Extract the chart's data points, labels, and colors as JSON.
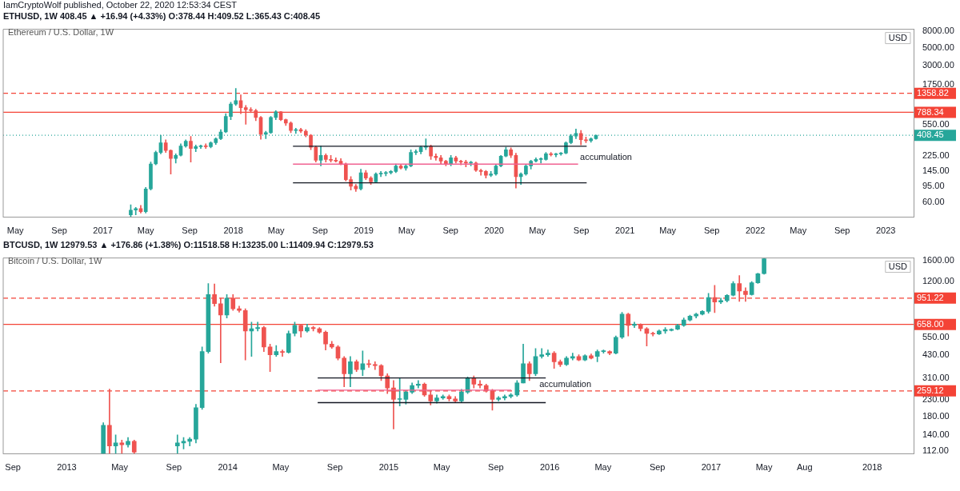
{
  "chart_data": [
    {
      "type": "candlestick",
      "title": "Ethereum / U.S. Dollar, 1W",
      "subtitle": "ETHUSD, 1W  408.45 ▲ +16.94 (+4.33%) O:378.44 H:409.52 L:365.43 C:408.45",
      "ylabel": "USD",
      "log": true,
      "annotations": [
        "IamCryptoWolf published, October 22, 2020 12:53:34 CEST",
        {
          "text": "accumulation",
          "x": "2020-08-24",
          "y": 188
        }
      ],
      "xlim": [
        "2016-03-28",
        "2023-03-20"
      ],
      "xticks": [
        {
          "value": "2016-05-01",
          "label": "May"
        },
        {
          "value": "2016-09-01",
          "label": "Sep"
        },
        {
          "value": "2017-01-01",
          "label": "2017"
        },
        {
          "value": "2017-05-01",
          "label": "May"
        },
        {
          "value": "2017-09-01",
          "label": "Sep"
        },
        {
          "value": "2018-01-01",
          "label": "2018"
        },
        {
          "value": "2018-05-01",
          "label": "May"
        },
        {
          "value": "2018-09-01",
          "label": "Sep"
        },
        {
          "value": "2019-01-01",
          "label": "2019"
        },
        {
          "value": "2019-05-01",
          "label": "May"
        },
        {
          "value": "2019-09-01",
          "label": "Sep"
        },
        {
          "value": "2020-01-01",
          "label": "2020"
        },
        {
          "value": "2020-05-01",
          "label": "May"
        },
        {
          "value": "2020-09-01",
          "label": "Sep"
        },
        {
          "value": "2021-01-01",
          "label": "2021"
        },
        {
          "value": "2021-05-01",
          "label": "May"
        },
        {
          "value": "2021-09-01",
          "label": "Sep"
        },
        {
          "value": "2022-01-01",
          "label": "2022"
        },
        {
          "value": "2022-05-01",
          "label": "May"
        },
        {
          "value": "2022-09-01",
          "label": "Sep"
        },
        {
          "value": "2023-01-01",
          "label": "2023"
        }
      ],
      "ylim": [
        39,
        8500
      ],
      "yticks": [
        {
          "value": 60,
          "label": "60.00"
        },
        {
          "value": 95,
          "label": "95.00"
        },
        {
          "value": 145,
          "label": "145.00"
        },
        {
          "value": 225,
          "label": "225.00"
        },
        {
          "value": 550,
          "label": "550.00"
        },
        {
          "value": 1750,
          "label": "1750.00"
        },
        {
          "value": 3000,
          "label": "3000.00"
        },
        {
          "value": 5000,
          "label": "5000.00"
        },
        {
          "value": 8000,
          "label": "8000.00"
        }
      ],
      "ref_lines": [
        {
          "axis": "y",
          "value": 1358.82,
          "label": "1358.82",
          "color": "#f44336",
          "line_style": "dashed"
        },
        {
          "axis": "y",
          "value": 788.34,
          "label": "788.34",
          "color": "#f44336",
          "line_style": "solid"
        },
        {
          "axis": "y",
          "value": 408.45,
          "label": "408.45",
          "color": "#26a69a",
          "line_style": "dotted"
        }
      ],
      "series": [
        {
          "type": "line",
          "color": "#131722",
          "line_style": "solid",
          "x": [
            "2018-06-17",
            "2020-09-16"
          ],
          "values": [
            298,
            298
          ]
        },
        {
          "type": "line",
          "color": "#f06292",
          "line_style": "solid",
          "x": [
            "2018-06-17",
            "2020-08-23"
          ],
          "values": [
            179,
            179
          ]
        },
        {
          "type": "line",
          "color": "#131722",
          "line_style": "solid",
          "x": [
            "2018-06-17",
            "2020-09-16"
          ],
          "values": [
            105,
            105
          ]
        }
      ],
      "x": [
        "2017-03-20",
        "2017-04-03",
        "2017-04-17",
        "2017-05-01",
        "2017-05-15",
        "2017-05-29",
        "2017-06-12",
        "2017-06-26",
        "2017-07-10",
        "2017-07-24",
        "2017-08-07",
        "2017-08-21",
        "2017-09-04",
        "2017-09-18",
        "2017-10-02",
        "2017-10-16",
        "2017-10-30",
        "2017-11-13",
        "2017-11-27",
        "2017-12-11",
        "2017-12-25",
        "2018-01-08",
        "2018-01-22",
        "2018-02-05",
        "2018-02-19",
        "2018-03-05",
        "2018-03-19",
        "2018-04-02",
        "2018-04-16",
        "2018-04-30",
        "2018-05-14",
        "2018-05-28",
        "2018-06-11",
        "2018-06-25",
        "2018-07-09",
        "2018-07-23",
        "2018-08-06",
        "2018-08-20",
        "2018-09-03",
        "2018-09-17",
        "2018-10-01",
        "2018-10-15",
        "2018-10-29",
        "2018-11-12",
        "2018-11-26",
        "2018-12-10",
        "2018-12-24",
        "2019-01-07",
        "2019-01-21",
        "2019-02-04",
        "2019-02-18",
        "2019-03-04",
        "2019-03-18",
        "2019-04-01",
        "2019-04-15",
        "2019-04-29",
        "2019-05-13",
        "2019-05-27",
        "2019-06-10",
        "2019-06-24",
        "2019-07-08",
        "2019-07-22",
        "2019-08-05",
        "2019-08-19",
        "2019-09-02",
        "2019-09-16",
        "2019-09-30",
        "2019-10-14",
        "2019-10-28",
        "2019-11-11",
        "2019-11-25",
        "2019-12-09",
        "2019-12-23",
        "2020-01-06",
        "2020-01-20",
        "2020-02-03",
        "2020-02-17",
        "2020-03-02",
        "2020-03-16",
        "2020-03-30",
        "2020-04-13",
        "2020-04-27",
        "2020-05-11",
        "2020-05-25",
        "2020-06-08",
        "2020-06-22",
        "2020-07-06",
        "2020-07-20",
        "2020-08-03",
        "2020-08-17",
        "2020-08-31",
        "2020-09-14",
        "2020-09-28",
        "2020-10-12"
      ],
      "ohlc": [
        [
          42,
          56,
          40,
          48
        ],
        [
          48,
          52,
          42,
          50
        ],
        [
          50,
          55,
          44,
          46
        ],
        [
          46,
          92,
          44,
          88
        ],
        [
          88,
          190,
          85,
          180
        ],
        [
          180,
          260,
          175,
          250
        ],
        [
          250,
          410,
          240,
          330
        ],
        [
          330,
          360,
          250,
          265
        ],
        [
          265,
          270,
          135,
          210
        ],
        [
          210,
          240,
          185,
          230
        ],
        [
          230,
          320,
          225,
          300
        ],
        [
          300,
          360,
          290,
          345
        ],
        [
          345,
          395,
          190,
          280
        ],
        [
          280,
          310,
          255,
          295
        ],
        [
          295,
          310,
          280,
          300
        ],
        [
          300,
          320,
          280,
          295
        ],
        [
          295,
          340,
          285,
          330
        ],
        [
          330,
          380,
          315,
          370
        ],
        [
          370,
          480,
          360,
          450
        ],
        [
          450,
          760,
          440,
          700
        ],
        [
          700,
          1050,
          640,
          1000
        ],
        [
          1000,
          1563,
          960,
          1100
        ],
        [
          1100,
          1300,
          760,
          900
        ],
        [
          900,
          960,
          560,
          850
        ],
        [
          850,
          900,
          780,
          830
        ],
        [
          830,
          860,
          620,
          680
        ],
        [
          680,
          700,
          365,
          420
        ],
        [
          420,
          460,
          370,
          440
        ],
        [
          440,
          700,
          430,
          680
        ],
        [
          680,
          830,
          640,
          800
        ],
        [
          800,
          810,
          620,
          640
        ],
        [
          640,
          650,
          540,
          580
        ],
        [
          580,
          600,
          440,
          470
        ],
        [
          470,
          500,
          430,
          480
        ],
        [
          480,
          500,
          440,
          460
        ],
        [
          460,
          480,
          390,
          410
        ],
        [
          410,
          420,
          270,
          290
        ],
        [
          290,
          300,
          190,
          200
        ],
        [
          200,
          300,
          170,
          230
        ],
        [
          230,
          240,
          190,
          205
        ],
        [
          205,
          230,
          190,
          200
        ],
        [
          200,
          215,
          190,
          195
        ],
        [
          195,
          210,
          175,
          180
        ],
        [
          180,
          185,
          110,
          115
        ],
        [
          115,
          125,
          85,
          95
        ],
        [
          95,
          100,
          82,
          88
        ],
        [
          88,
          155,
          85,
          140
        ],
        [
          140,
          150,
          115,
          120
        ],
        [
          120,
          125,
          100,
          108
        ],
        [
          108,
          140,
          105,
          135
        ],
        [
          135,
          145,
          125,
          137
        ],
        [
          137,
          145,
          128,
          140
        ],
        [
          140,
          150,
          135,
          145
        ],
        [
          145,
          180,
          140,
          170
        ],
        [
          170,
          175,
          155,
          160
        ],
        [
          160,
          175,
          150,
          170
        ],
        [
          170,
          270,
          165,
          250
        ],
        [
          250,
          270,
          235,
          255
        ],
        [
          255,
          300,
          240,
          290
        ],
        [
          290,
          370,
          270,
          295
        ],
        [
          295,
          310,
          205,
          225
        ],
        [
          225,
          240,
          200,
          215
        ],
        [
          215,
          230,
          180,
          195
        ],
        [
          195,
          200,
          170,
          180
        ],
        [
          180,
          230,
          170,
          215
        ],
        [
          215,
          225,
          185,
          195
        ],
        [
          195,
          200,
          175,
          190
        ],
        [
          190,
          200,
          165,
          185
        ],
        [
          185,
          195,
          170,
          185
        ],
        [
          185,
          190,
          145,
          150
        ],
        [
          150,
          155,
          130,
          145
        ],
        [
          145,
          150,
          120,
          130
        ],
        [
          130,
          145,
          125,
          135
        ],
        [
          135,
          175,
          130,
          170
        ],
        [
          170,
          230,
          165,
          225
        ],
        [
          225,
          290,
          220,
          270
        ],
        [
          270,
          285,
          215,
          230
        ],
        [
          230,
          245,
          90,
          125
        ],
        [
          125,
          140,
          100,
          135
        ],
        [
          135,
          175,
          130,
          170
        ],
        [
          170,
          200,
          155,
          195
        ],
        [
          195,
          215,
          190,
          205
        ],
        [
          205,
          215,
          185,
          205
        ],
        [
          205,
          250,
          200,
          240
        ],
        [
          240,
          250,
          225,
          235
        ],
        [
          235,
          245,
          220,
          240
        ],
        [
          240,
          250,
          230,
          245
        ],
        [
          245,
          340,
          240,
          330
        ],
        [
          330,
          420,
          320,
          400
        ],
        [
          400,
          490,
          370,
          430
        ],
        [
          430,
          470,
          310,
          360
        ],
        [
          360,
          390,
          330,
          350
        ],
        [
          350,
          380,
          335,
          370
        ],
        [
          370,
          409.52,
          365.43,
          408.45
        ]
      ]
    },
    {
      "type": "candlestick",
      "title": "Bitcoin / U.S. Dollar, 1W",
      "subtitle": "BTCUSD, 1W  12979.53 ▲ +176.86 (+1.38%) O:11518.58 H:13235.00 L:11409.94 C:12979.53",
      "ylabel": "USD",
      "log": true,
      "annotations": [
        {
          "text": "accumulation",
          "x": "2015-12-05",
          "y": 262
        }
      ],
      "xlim": [
        "2012-08-10",
        "2018-04-05"
      ],
      "xticks": [
        {
          "value": "2012-09-01",
          "label": "Sep"
        },
        {
          "value": "2013-01-01",
          "label": "2013"
        },
        {
          "value": "2013-05-01",
          "label": "May"
        },
        {
          "value": "2013-09-01",
          "label": "Sep"
        },
        {
          "value": "2014-01-01",
          "label": "2014"
        },
        {
          "value": "2014-05-01",
          "label": "May"
        },
        {
          "value": "2014-09-01",
          "label": "Sep"
        },
        {
          "value": "2015-01-01",
          "label": "2015"
        },
        {
          "value": "2015-05-01",
          "label": "May"
        },
        {
          "value": "2015-09-01",
          "label": "Sep"
        },
        {
          "value": "2016-01-01",
          "label": "2016"
        },
        {
          "value": "2016-05-01",
          "label": "May"
        },
        {
          "value": "2016-09-01",
          "label": "Sep"
        },
        {
          "value": "2017-01-01",
          "label": "2017"
        },
        {
          "value": "2017-05-01",
          "label": "May"
        },
        {
          "value": "2017-08-01",
          "label": "Aug"
        },
        {
          "value": "2018-01-01",
          "label": "2018"
        }
      ],
      "ylim": [
        107,
        1670
      ],
      "yticks": [
        {
          "value": 112,
          "label": "112.00"
        },
        {
          "value": 140,
          "label": "140.00"
        },
        {
          "value": 180,
          "label": "180.00"
        },
        {
          "value": 230,
          "label": "230.00"
        },
        {
          "value": 310,
          "label": "310.00"
        },
        {
          "value": 430,
          "label": "430.00"
        },
        {
          "value": 550,
          "label": "550.00"
        },
        {
          "value": 1200,
          "label": "1200.00"
        },
        {
          "value": 1600,
          "label": "1600.00"
        }
      ],
      "ref_lines": [
        {
          "axis": "y",
          "value": 951.22,
          "label": "951.22",
          "color": "#f44336",
          "line_style": "dashed"
        },
        {
          "axis": "y",
          "value": 658.0,
          "label": "658.00",
          "color": "#f44336",
          "line_style": "solid"
        },
        {
          "axis": "y",
          "value": 259.12,
          "label": "259.12",
          "color": "#f44336",
          "line_style": "dashed"
        }
      ],
      "series": [
        {
          "type": "line",
          "color": "#131722",
          "line_style": "solid",
          "x": [
            "2014-07-24",
            "2015-12-23"
          ],
          "values": [
            311,
            311
          ]
        },
        {
          "type": "line",
          "color": "#f06292",
          "line_style": "solid",
          "x": [
            "2014-07-24",
            "2015-10-06"
          ],
          "values": [
            262,
            262
          ]
        },
        {
          "type": "line",
          "color": "#131722",
          "line_style": "solid",
          "x": [
            "2014-07-24",
            "2015-12-23"
          ],
          "values": [
            220,
            220
          ]
        }
      ],
      "x": [
        "2013-03-25",
        "2013-04-08",
        "2013-04-22",
        "2013-05-06",
        "2013-05-20",
        "2013-06-03",
        "2013-09-09",
        "2013-09-23",
        "2013-10-07",
        "2013-10-21",
        "2013-11-04",
        "2013-11-18",
        "2013-12-02",
        "2013-12-16",
        "2013-12-30",
        "2014-01-13",
        "2014-01-27",
        "2014-02-10",
        "2014-02-24",
        "2014-03-10",
        "2014-03-24",
        "2014-04-07",
        "2014-04-21",
        "2014-05-05",
        "2014-05-19",
        "2014-06-02",
        "2014-06-16",
        "2014-06-30",
        "2014-07-14",
        "2014-07-28",
        "2014-08-11",
        "2014-08-25",
        "2014-09-08",
        "2014-09-22",
        "2014-10-06",
        "2014-10-20",
        "2014-11-03",
        "2014-11-17",
        "2014-12-01",
        "2014-12-15",
        "2014-12-29",
        "2015-01-12",
        "2015-01-26",
        "2015-02-09",
        "2015-02-23",
        "2015-03-09",
        "2015-03-23",
        "2015-04-06",
        "2015-04-20",
        "2015-05-04",
        "2015-05-18",
        "2015-06-01",
        "2015-06-15",
        "2015-06-29",
        "2015-07-13",
        "2015-07-27",
        "2015-08-10",
        "2015-08-24",
        "2015-09-07",
        "2015-09-21",
        "2015-10-05",
        "2015-10-19",
        "2015-11-02",
        "2015-11-16",
        "2015-11-30",
        "2015-12-14",
        "2015-12-28",
        "2016-01-11",
        "2016-01-25",
        "2016-02-08",
        "2016-02-22",
        "2016-03-07",
        "2016-03-21",
        "2016-04-04",
        "2016-04-18",
        "2016-05-02",
        "2016-05-16",
        "2016-05-30",
        "2016-06-13",
        "2016-06-27",
        "2016-07-11",
        "2016-07-25",
        "2016-08-08",
        "2016-08-22",
        "2016-09-05",
        "2016-09-19",
        "2016-10-03",
        "2016-10-17",
        "2016-10-31",
        "2016-11-14",
        "2016-11-28",
        "2016-12-12",
        "2016-12-26",
        "2017-01-09",
        "2017-01-23",
        "2017-02-06",
        "2017-02-20",
        "2017-03-06",
        "2017-03-20",
        "2017-04-03",
        "2017-04-17",
        "2017-05-01"
      ],
      "ohlc": [
        [
          108,
          166,
          108,
          160
        ],
        [
          160,
          266,
          108,
          120
        ],
        [
          120,
          140,
          108,
          125
        ],
        [
          125,
          130,
          108,
          122
        ],
        [
          122,
          135,
          118,
          128
        ],
        [
          128,
          130,
          108,
          110
        ],
        [
          120,
          140,
          108,
          125
        ],
        [
          125,
          135,
          115,
          128
        ],
        [
          128,
          135,
          120,
          132
        ],
        [
          132,
          215,
          125,
          205
        ],
        [
          205,
          480,
          200,
          450
        ],
        [
          450,
          1167,
          440,
          1000
        ],
        [
          1000,
          1160,
          850,
          880
        ],
        [
          880,
          950,
          384,
          750
        ],
        [
          750,
          1000,
          720,
          951
        ],
        [
          951,
          1000,
          800,
          820
        ],
        [
          820,
          850,
          780,
          800
        ],
        [
          800,
          820,
          400,
          600
        ],
        [
          600,
          680,
          420,
          620
        ],
        [
          620,
          680,
          600,
          630
        ],
        [
          630,
          640,
          450,
          480
        ],
        [
          480,
          500,
          340,
          430
        ],
        [
          430,
          490,
          420,
          450
        ],
        [
          450,
          460,
          420,
          445
        ],
        [
          445,
          600,
          440,
          580
        ],
        [
          580,
          680,
          560,
          650
        ],
        [
          650,
          660,
          550,
          600
        ],
        [
          600,
          660,
          590,
          630
        ],
        [
          630,
          640,
          600,
          620
        ],
        [
          620,
          630,
          580,
          590
        ],
        [
          590,
          600,
          460,
          500
        ],
        [
          500,
          520,
          470,
          480
        ],
        [
          480,
          490,
          400,
          410
        ],
        [
          410,
          420,
          275,
          330
        ],
        [
          330,
          420,
          275,
          390
        ],
        [
          390,
          400,
          340,
          350
        ],
        [
          350,
          454,
          320,
          380
        ],
        [
          380,
          400,
          360,
          375
        ],
        [
          375,
          390,
          350,
          370
        ],
        [
          370,
          375,
          300,
          320
        ],
        [
          320,
          330,
          250,
          270
        ],
        [
          270,
          300,
          152,
          230
        ],
        [
          230,
          311,
          210,
          230
        ],
        [
          230,
          260,
          215,
          255
        ],
        [
          255,
          290,
          250,
          280
        ],
        [
          280,
          300,
          270,
          285
        ],
        [
          285,
          290,
          240,
          245
        ],
        [
          245,
          260,
          213,
          225
        ],
        [
          225,
          245,
          218,
          235
        ],
        [
          235,
          245,
          230,
          240
        ],
        [
          240,
          245,
          225,
          232
        ],
        [
          232,
          240,
          222,
          225
        ],
        [
          225,
          265,
          220,
          255
        ],
        [
          255,
          315,
          250,
          310
        ],
        [
          310,
          320,
          270,
          285
        ],
        [
          285,
          300,
          270,
          280
        ],
        [
          280,
          285,
          255,
          260
        ],
        [
          260,
          265,
          198,
          230
        ],
        [
          230,
          240,
          225,
          235
        ],
        [
          235,
          245,
          228,
          240
        ],
        [
          240,
          250,
          235,
          245
        ],
        [
          245,
          300,
          240,
          290
        ],
        [
          290,
          500,
          290,
          380
        ],
        [
          380,
          390,
          300,
          330
        ],
        [
          330,
          470,
          320,
          420
        ],
        [
          420,
          470,
          410,
          430
        ],
        [
          430,
          460,
          420,
          440
        ],
        [
          440,
          450,
          355,
          390
        ],
        [
          390,
          400,
          365,
          375
        ],
        [
          375,
          420,
          370,
          410
        ],
        [
          410,
          440,
          400,
          420
        ],
        [
          420,
          430,
          395,
          400
        ],
        [
          400,
          430,
          395,
          425
        ],
        [
          425,
          435,
          405,
          410
        ],
        [
          420,
          460,
          390,
          450
        ],
        [
          450,
          460,
          440,
          450
        ],
        [
          450,
          455,
          430,
          440
        ],
        [
          440,
          560,
          435,
          550
        ],
        [
          550,
          780,
          540,
          760
        ],
        [
          760,
          770,
          560,
          650
        ],
        [
          650,
          680,
          630,
          660
        ],
        [
          660,
          665,
          600,
          620
        ],
        [
          620,
          630,
          486,
          580
        ],
        [
          580,
          590,
          560,
          575
        ],
        [
          575,
          610,
          570,
          600
        ],
        [
          600,
          630,
          580,
          612
        ],
        [
          605,
          620,
          600,
          615
        ],
        [
          615,
          660,
          610,
          650
        ],
        [
          650,
          720,
          640,
          700
        ],
        [
          700,
          750,
          690,
          740
        ],
        [
          740,
          770,
          720,
          760
        ],
        [
          760,
          800,
          750,
          790
        ],
        [
          790,
          1016,
          770,
          960
        ],
        [
          960,
          1137,
          776,
          900
        ],
        [
          900,
          950,
          880,
          920
        ],
        [
          920,
          1000,
          900,
          990
        ],
        [
          990,
          1200,
          980,
          1166
        ],
        [
          1166,
          1306,
          908,
          1050
        ],
        [
          1050,
          1100,
          908,
          1000
        ],
        [
          1000,
          1200,
          990,
          1180
        ],
        [
          1180,
          1350,
          1170,
          1340
        ],
        [
          1340,
          1665,
          1330,
          1650
        ]
      ]
    }
  ]
}
